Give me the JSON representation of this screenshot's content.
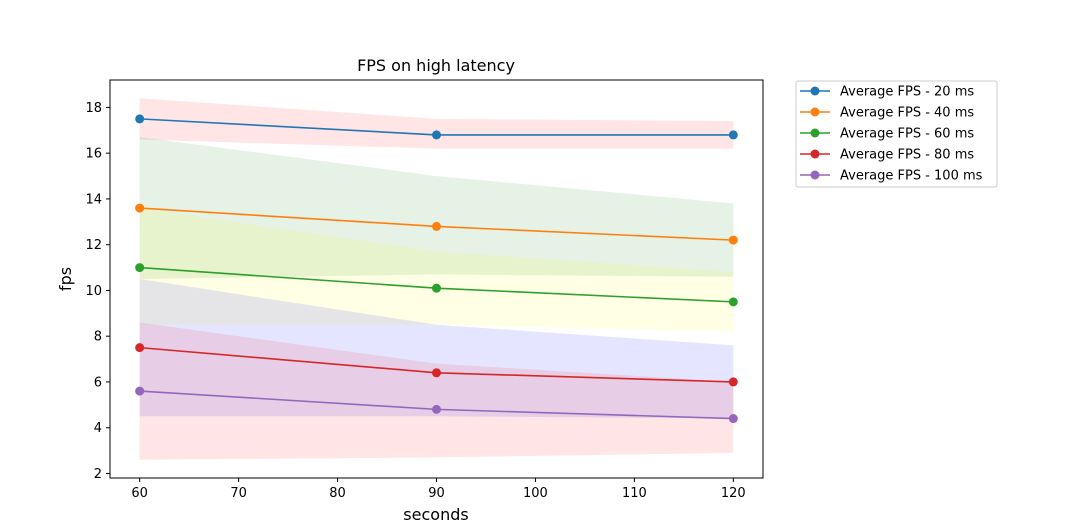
{
  "chart_data": {
    "type": "line",
    "title": "FPS on high latency",
    "xlabel": "seconds",
    "ylabel": "fps",
    "x": [
      60,
      90,
      120
    ],
    "xlim": [
      57,
      123
    ],
    "ylim": [
      1.8,
      19.2
    ],
    "xticks": [
      60,
      70,
      80,
      90,
      100,
      110,
      120
    ],
    "yticks": [
      2,
      4,
      6,
      8,
      10,
      12,
      14,
      16,
      18
    ],
    "grid": false,
    "legend_position": "outside-top-right",
    "series": [
      {
        "name": "Average FPS - 20 ms",
        "color": "#1f77b4",
        "values": [
          17.5,
          16.8,
          16.8
        ],
        "band_color": "#ff0000",
        "band_lower": [
          16.6,
          16.2,
          16.2
        ],
        "band_upper": [
          18.4,
          17.5,
          17.4
        ]
      },
      {
        "name": "Average FPS - 40 ms",
        "color": "#ff7f0e",
        "values": [
          13.6,
          12.8,
          12.2
        ],
        "band_color": "#008000",
        "band_lower": [
          10.5,
          10.7,
          10.6
        ],
        "band_upper": [
          16.7,
          15.0,
          13.8
        ]
      },
      {
        "name": "Average FPS - 60 ms",
        "color": "#2ca02c",
        "values": [
          11.0,
          10.1,
          9.5
        ],
        "band_color": "#ffff00",
        "band_lower": [
          8.5,
          8.5,
          8.2
        ],
        "band_upper": [
          13.6,
          11.7,
          10.8
        ]
      },
      {
        "name": "Average FPS - 80 ms",
        "color": "#d62728",
        "values": [
          7.5,
          6.4,
          6.0
        ],
        "band_color": "#0000ff",
        "band_lower": [
          4.5,
          4.5,
          4.4
        ],
        "band_upper": [
          10.5,
          8.5,
          7.6
        ]
      },
      {
        "name": "Average FPS - 100 ms",
        "color": "#9467bd",
        "values": [
          5.6,
          4.8,
          4.4
        ],
        "band_color": "#ff0000",
        "band_lower": [
          2.6,
          2.7,
          2.9
        ],
        "band_upper": [
          8.6,
          6.8,
          6.0
        ]
      }
    ]
  }
}
